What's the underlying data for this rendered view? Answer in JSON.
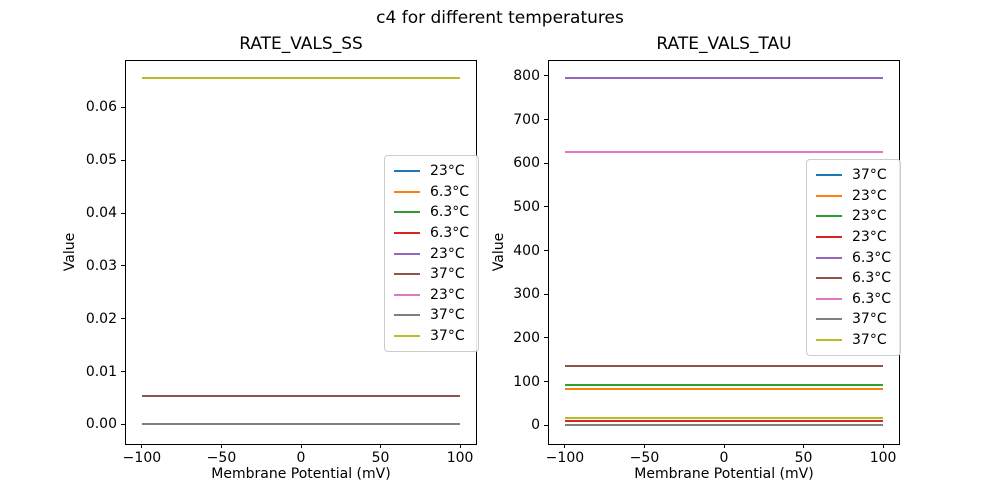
{
  "figure": {
    "suptitle": "c4 for different temperatures"
  },
  "chart_data": [
    {
      "type": "line",
      "title": "RATE_VALS_SS",
      "xlabel": "Membrane Potential (mV)",
      "ylabel": "Value",
      "xlim": [
        -110,
        110
      ],
      "ylim": [
        -0.0037,
        0.0688
      ],
      "x_range": [
        -100,
        100
      ],
      "x_ticks": [
        -100,
        -50,
        0,
        50,
        100
      ],
      "x_tick_labels": [
        "−100",
        "−50",
        "0",
        "50",
        "100"
      ],
      "y_ticks": [
        0,
        0.01,
        0.02,
        0.03,
        0.04,
        0.05,
        0.06
      ],
      "y_tick_labels": [
        "0.00",
        "0.01",
        "0.02",
        "0.03",
        "0.04",
        "0.05",
        "0.06"
      ],
      "grid": false,
      "legend_pos": {
        "x": 258,
        "y": 94
      },
      "series": [
        {
          "name": "23°C",
          "color": "#1f77b4",
          "value": null,
          "visible": false
        },
        {
          "name": "6.3°C",
          "color": "#ff7f0e",
          "value": null,
          "visible": false
        },
        {
          "name": "6.3°C",
          "color": "#2ca02c",
          "value": null,
          "visible": false
        },
        {
          "name": "6.3°C",
          "color": "#d62728",
          "value": null,
          "visible": false
        },
        {
          "name": "23°C",
          "color": "#9467bd",
          "value": null,
          "visible": false
        },
        {
          "name": "37°C",
          "color": "#8c564b",
          "value": 0.0054,
          "visible": true
        },
        {
          "name": "23°C",
          "color": "#e377c2",
          "value": null,
          "visible": false
        },
        {
          "name": "37°C",
          "color": "#7f7f7f",
          "value": 0.0,
          "visible": true
        },
        {
          "name": "37°C",
          "color": "#bcbd22",
          "value": 0.0655,
          "visible": true
        }
      ]
    },
    {
      "type": "line",
      "title": "RATE_VALS_TAU",
      "xlabel": "Membrane Potential (mV)",
      "ylabel": "Value",
      "xlim": [
        -110,
        110
      ],
      "ylim": [
        -43,
        834
      ],
      "x_range": [
        -100,
        100
      ],
      "x_ticks": [
        -100,
        -50,
        0,
        50,
        100
      ],
      "x_tick_labels": [
        "−100",
        "−50",
        "0",
        "50",
        "100"
      ],
      "y_ticks": [
        0,
        100,
        200,
        300,
        400,
        500,
        600,
        700,
        800
      ],
      "y_tick_labels": [
        "0",
        "100",
        "200",
        "300",
        "400",
        "500",
        "600",
        "700",
        "800"
      ],
      "grid": false,
      "legend_pos": {
        "x": 257,
        "y": 98
      },
      "series": [
        {
          "name": "37°C",
          "color": "#1f77b4",
          "value": null,
          "visible": false
        },
        {
          "name": "23°C",
          "color": "#ff7f0e",
          "value": 82,
          "visible": true
        },
        {
          "name": "23°C",
          "color": "#2ca02c",
          "value": 91,
          "visible": true
        },
        {
          "name": "23°C",
          "color": "#d62728",
          "value": 10,
          "visible": true
        },
        {
          "name": "6.3°C",
          "color": "#9467bd",
          "value": 794,
          "visible": true
        },
        {
          "name": "6.3°C",
          "color": "#8c564b",
          "value": 135,
          "visible": true
        },
        {
          "name": "6.3°C",
          "color": "#e377c2",
          "value": 626,
          "visible": true
        },
        {
          "name": "37°C",
          "color": "#7f7f7f",
          "value": 1,
          "visible": true
        },
        {
          "name": "37°C",
          "color": "#bcbd22",
          "value": 17.5,
          "visible": true
        }
      ]
    }
  ]
}
